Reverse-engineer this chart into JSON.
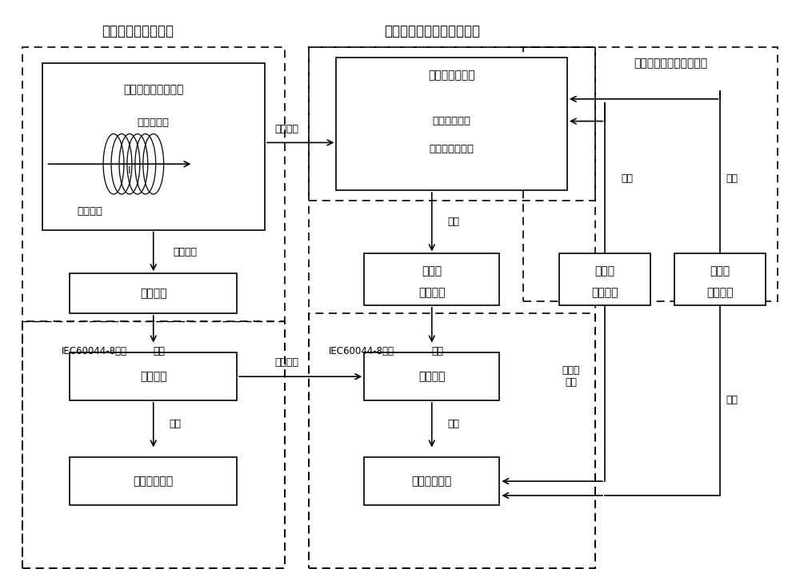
{
  "title_left": "工程实际光测量系统",
  "title_center": "闭环仿真高精度光测量系统",
  "title_right": "已有的成熟仿真接口方法",
  "lbl_sensor_title": "直流光学电流互感器",
  "lbl_sensor_sub1": "传感光纤环",
  "lbl_sensor_sub2": "电流测点",
  "lbl_collect": "采集单元",
  "lbl_merge_l": "合并单元",
  "lbl_protect_l": "控制保护装置",
  "lbl_simulator_title": "实时数字仿真器",
  "lbl_simulator_sub1": "微秒级小步长",
  "lbl_simulator_sub2": "模拟量输出模块",
  "lbl_optical_if1": "光测量",
  "lbl_optical_if2": "仿真接口",
  "lbl_merge_r": "合并单元",
  "lbl_protect_r": "控制保护装置",
  "lbl_analog_if1": "模拟量",
  "lbl_analog_if2": "仿真接口",
  "lbl_digital_if1": "数字量",
  "lbl_digital_if2": "仿真接口",
  "lbl_baopian": "保偏光缆",
  "lbl_simulated": "仿真模拟",
  "lbl_fiber1": "光纤",
  "lbl_iec_l": "IEC60044-8协议",
  "lbl_fiber2": "光纤",
  "lbl_iec_r": "IEC60044-8协议",
  "lbl_fiber3": "光纤",
  "lbl_complete": "完全一致",
  "lbl_fiber4": "光纤",
  "lbl_fiber5": "光纤",
  "lbl_fiber6": "光纤",
  "lbl_fiber7": "光纤",
  "lbl_cable_fiber": "电缆或\n光纤",
  "lbl_cable": "电缆"
}
